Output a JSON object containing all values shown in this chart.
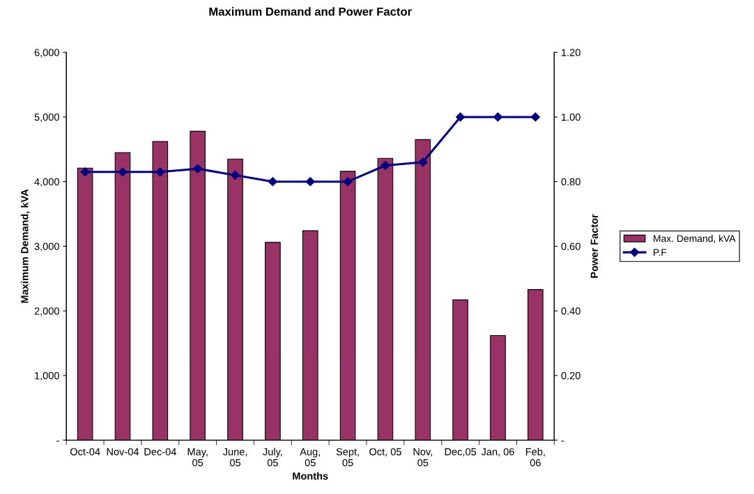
{
  "chart_data": {
    "type": "bar",
    "title": "Maximum Demand and Power Factor",
    "xlabel": "Months",
    "ylabel": "Maximum Demand, kVA",
    "y2label": "Power Factor",
    "categories": [
      "Oct-04",
      "Nov-04",
      "Dec-04",
      "May,\n05",
      "June,\n05",
      "July,\n05",
      "Aug,\n05",
      "Sept,\n05",
      "Oct, 05",
      "Nov,\n05",
      "Dec,05",
      "Jan, 06",
      "Feb,\n06"
    ],
    "series": [
      {
        "name": "Max. Demand, kVA",
        "color": "#993366",
        "values": [
          4210,
          4450,
          4620,
          4780,
          4350,
          3060,
          3240,
          4160,
          4360,
          4650,
          2170,
          1620,
          2330
        ]
      },
      {
        "name": "P.F",
        "type": "line",
        "axis": "y2",
        "color": "#000080",
        "marker": "diamond",
        "values": [
          0.83,
          0.83,
          0.83,
          0.84,
          0.82,
          0.8,
          0.8,
          0.8,
          0.85,
          0.86,
          1.0,
          1.0,
          1.0
        ]
      }
    ],
    "ylim": [
      0,
      6000
    ],
    "yticks": [
      {
        "value": 0,
        "label": "-"
      },
      {
        "value": 1000,
        "label": "1,000"
      },
      {
        "value": 2000,
        "label": "2,000"
      },
      {
        "value": 3000,
        "label": "3,000"
      },
      {
        "value": 4000,
        "label": "4,000"
      },
      {
        "value": 5000,
        "label": "5,000"
      },
      {
        "value": 6000,
        "label": "6,000"
      }
    ],
    "y2lim": [
      0,
      1.2
    ],
    "y2ticks": [
      {
        "value": 0,
        "label": "-"
      },
      {
        "value": 0.2,
        "label": "0.20"
      },
      {
        "value": 0.4,
        "label": "0.40"
      },
      {
        "value": 0.6,
        "label": "0.60"
      },
      {
        "value": 0.8,
        "label": "0.80"
      },
      {
        "value": 1.0,
        "label": "1.00"
      },
      {
        "value": 1.2,
        "label": "1.20"
      }
    ],
    "legend": "right",
    "grid": false
  }
}
